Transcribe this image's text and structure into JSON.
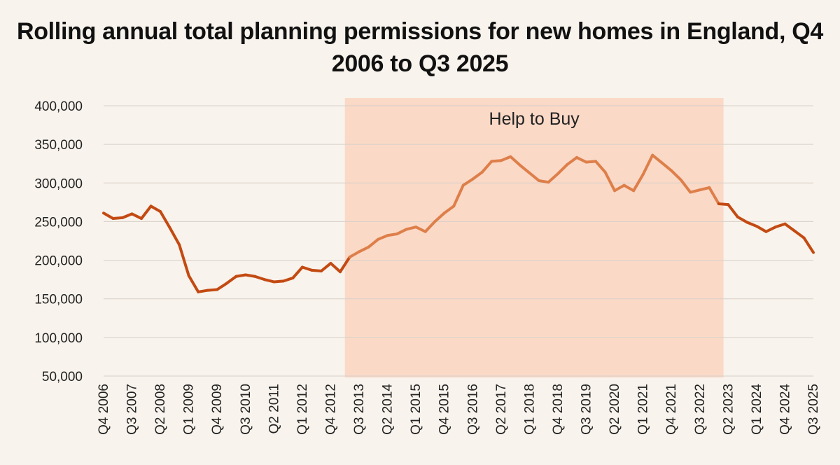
{
  "colors": {
    "background": "#f8f3ec",
    "band": "#fbd9c7",
    "line_outside": "#c34a12",
    "line_inside": "#de7f4a",
    "grid": "#d6d0c8"
  },
  "chart_data": {
    "type": "line",
    "title": "Rolling annual total planning permissions for new homes in England, Q4 2006 to Q3 2025",
    "xlabel": "",
    "ylabel": "",
    "ylim": [
      50000,
      400000
    ],
    "yticks": [
      50000,
      100000,
      150000,
      200000,
      250000,
      300000,
      350000,
      400000
    ],
    "ytick_labels": [
      "50,000",
      "100,000",
      "150,000",
      "200,000",
      "250,000",
      "300,000",
      "350,000",
      "400,000"
    ],
    "grid": true,
    "xtick_labels": [
      "Q4 2006",
      "Q3 2007",
      "Q2 2008",
      "Q1 2009",
      "Q4 2009",
      "Q3 2010",
      "Q2 2011",
      "Q1 2012",
      "Q4 2012",
      "Q3 2013",
      "Q2 2014",
      "Q1 2015",
      "Q4 2015",
      "Q3 2016",
      "Q2 2017",
      "Q1 2018",
      "Q4 2018",
      "Q3 2019",
      "Q2 2020",
      "Q1 2021",
      "Q4 2021",
      "Q3 2022",
      "Q2 2023",
      "Q1 2024",
      "Q4 2024",
      "Q3 2025"
    ],
    "annotations": [
      {
        "text": "Help to Buy",
        "start": "Q2 2013",
        "end": "Q2 2023"
      }
    ],
    "series": [
      {
        "x": [
          "Q4 2006",
          "Q1 2007",
          "Q2 2007",
          "Q3 2007",
          "Q4 2007",
          "Q1 2008",
          "Q2 2008",
          "Q3 2008",
          "Q4 2008",
          "Q1 2009",
          "Q2 2009",
          "Q3 2009",
          "Q4 2009",
          "Q1 2010",
          "Q2 2010",
          "Q3 2010",
          "Q4 2010",
          "Q1 2011",
          "Q2 2011",
          "Q3 2011",
          "Q4 2011",
          "Q1 2012",
          "Q2 2012",
          "Q3 2012",
          "Q4 2012",
          "Q1 2013",
          "Q2 2013",
          "Q3 2013",
          "Q4 2013",
          "Q1 2014",
          "Q2 2014",
          "Q3 2014",
          "Q4 2014",
          "Q1 2015",
          "Q2 2015",
          "Q3 2015",
          "Q4 2015",
          "Q1 2016",
          "Q2 2016",
          "Q3 2016",
          "Q4 2016",
          "Q1 2017",
          "Q2 2017",
          "Q3 2017",
          "Q4 2017",
          "Q1 2018",
          "Q2 2018",
          "Q3 2018",
          "Q4 2018",
          "Q1 2019",
          "Q2 2019",
          "Q3 2019",
          "Q4 2019",
          "Q1 2020",
          "Q2 2020",
          "Q3 2020",
          "Q4 2020",
          "Q1 2021",
          "Q2 2021",
          "Q3 2021",
          "Q4 2021",
          "Q1 2022",
          "Q2 2022",
          "Q3 2022",
          "Q4 2022",
          "Q1 2023",
          "Q2 2023",
          "Q3 2023",
          "Q4 2023",
          "Q1 2024",
          "Q2 2024",
          "Q3 2024",
          "Q4 2024",
          "Q1 2025",
          "Q2 2025",
          "Q3 2025"
        ],
        "values": [
          261000,
          254000,
          255000,
          260000,
          254000,
          270000,
          263000,
          242000,
          220000,
          180000,
          159000,
          161000,
          162000,
          170000,
          179000,
          181000,
          179000,
          175000,
          172000,
          173000,
          177000,
          191000,
          187000,
          186000,
          196000,
          185000,
          204000,
          211000,
          217000,
          227000,
          232000,
          234000,
          240000,
          243000,
          237000,
          250000,
          261000,
          270000,
          297000,
          305000,
          314000,
          328000,
          329000,
          334000,
          323000,
          313000,
          303000,
          301000,
          312000,
          324000,
          333000,
          327000,
          328000,
          314000,
          290000,
          297000,
          290000,
          311000,
          336000,
          326000,
          316000,
          304000,
          288000,
          291000,
          294000,
          273000,
          272000,
          256000,
          249000,
          244000,
          237000,
          243000,
          247000,
          238000,
          229000,
          210000
        ]
      }
    ]
  }
}
